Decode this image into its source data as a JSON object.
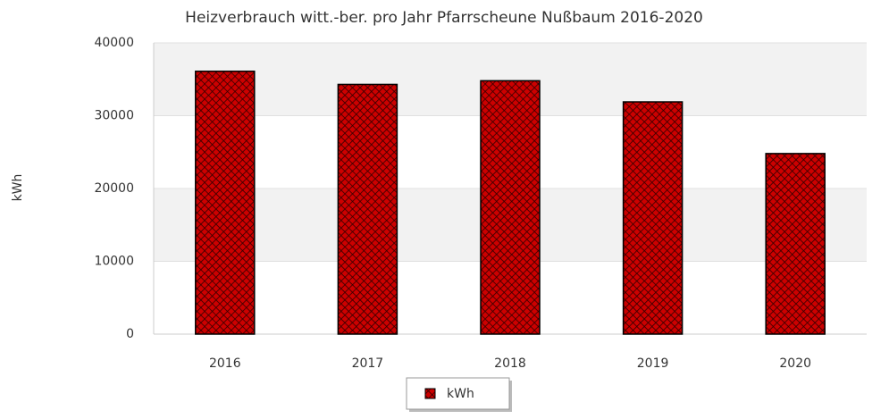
{
  "chart_data": {
    "type": "bar",
    "title": "Heizverbrauch witt.-ber. pro Jahr Pfarrscheune Nußbaum 2016-2020",
    "y_label": "kWh",
    "categories": [
      "2016",
      "2017",
      "2018",
      "2019",
      "2020"
    ],
    "series": [
      {
        "name": "kWh",
        "color": "#cc0000",
        "values": [
          36100,
          34300,
          34800,
          31900,
          24800
        ]
      }
    ],
    "ylim": [
      0,
      40000
    ],
    "yticks": [
      0,
      10000,
      20000,
      30000,
      40000
    ],
    "grid": true
  }
}
